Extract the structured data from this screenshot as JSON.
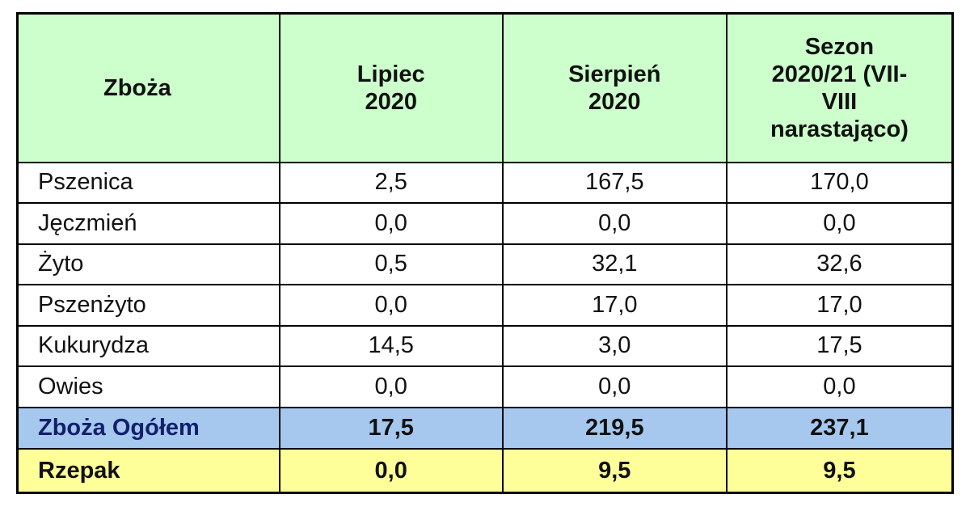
{
  "table": {
    "header": [
      "Zboża",
      "Lipiec 2020",
      "Sierpień 2020",
      "Sezon 2020/21 (VII-VIII narastająco)"
    ],
    "rows": [
      [
        "Pszenica",
        "2,5",
        "167,5",
        "170,0"
      ],
      [
        "Jęczmień",
        "0,0",
        "0,0",
        "0,0"
      ],
      [
        "Żyto",
        "0,5",
        "32,1",
        "32,6"
      ],
      [
        "Pszenżyto",
        "0,0",
        "17,0",
        "17,0"
      ],
      [
        "Kukurydza",
        "14,5",
        "3,0",
        "17,5"
      ],
      [
        "Owies",
        "0,0",
        "0,0",
        "0,0"
      ]
    ],
    "total": [
      "Zboża Ogółem",
      "17,5",
      "219,5",
      "237,1"
    ],
    "rapeseed": [
      "Rzepak",
      "0,0",
      "9,5",
      "9,5"
    ]
  }
}
